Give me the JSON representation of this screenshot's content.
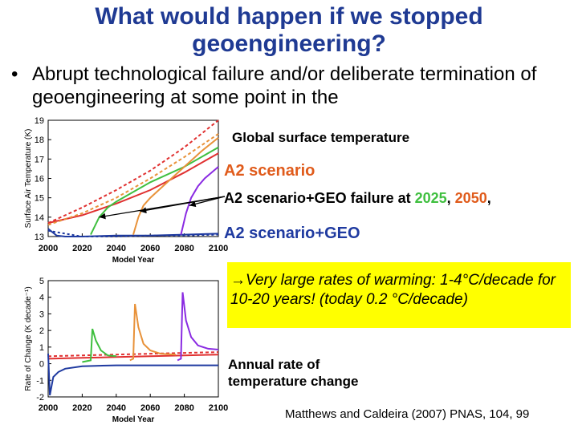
{
  "slide": {
    "title_line1": "What would happen if we stopped",
    "title_line2": "geoengineering?",
    "bullet_dot": "•",
    "bullet_text": "Abrupt technological failure and/or deliberate termination of geoengineering at some point in the",
    "label_global": "Global surface temperature",
    "label_a2": "A2 scenario",
    "label_geo_failure_prefix": "A2 scenario+GEO failure at ",
    "label_year_2025": "2025",
    "label_sep": ", ",
    "label_year_2050": "2050",
    "label_trail": ",",
    "label_a2geo": "A2 scenario+GEO",
    "box_text": "→Very large rates of warming: 1-4°C/decade for 10-20 years! (today 0.2 °C/decade)",
    "annual_line1": "Annual rate of",
    "annual_line2": "temperature change",
    "citation": "Matthews and Caldeira (2007) PNAS, 104, 99",
    "colors": {
      "title": "#1f3a93",
      "orange": "#e05b1b",
      "green": "#3fbf3f",
      "box": "#ffff00"
    }
  },
  "chart_data": [
    {
      "type": "line",
      "ylabel": "Surface Air Temperature (K)",
      "xlabel": "Model Year",
      "xlim": [
        2000,
        2100
      ],
      "ylim": [
        13,
        19
      ],
      "x_ticks": [
        2000,
        2020,
        2040,
        2060,
        2080,
        2100
      ],
      "y_ticks": [
        13,
        14,
        15,
        16,
        17,
        18,
        19
      ],
      "series": [
        {
          "color": "#e03030",
          "dash": "4 3",
          "x": [
            2000,
            2020,
            2040,
            2060,
            2080,
            2100
          ],
          "y": [
            13.7,
            14.5,
            15.4,
            16.4,
            17.6,
            19.0
          ]
        },
        {
          "color": "#e03030",
          "dash": "",
          "x": [
            2000,
            2020,
            2040,
            2060,
            2080,
            2100
          ],
          "y": [
            13.7,
            14.1,
            14.7,
            15.4,
            16.3,
            17.3
          ]
        },
        {
          "color": "#e8923a",
          "dash": "4 3",
          "x": [
            2000,
            2020,
            2040,
            2060,
            2080,
            2100
          ],
          "y": [
            13.6,
            14.2,
            15.0,
            16.0,
            17.1,
            18.3
          ]
        },
        {
          "color": "#1f3aa0",
          "dash": "",
          "x": [
            2000,
            2005,
            2010,
            2020,
            2040,
            2060,
            2080,
            2100
          ],
          "y": [
            13.4,
            13.05,
            13.0,
            13.0,
            13.05,
            13.05,
            13.1,
            13.15
          ]
        },
        {
          "color": "#1f3aa0",
          "dash": "3 3",
          "x": [
            2000,
            2020,
            2040,
            2060,
            2080,
            2100
          ],
          "y": [
            13.3,
            13.0,
            13.0,
            13.05,
            13.05,
            13.1
          ]
        },
        {
          "color": "#3fbf3f",
          "dash": "",
          "x": [
            2025,
            2030,
            2035,
            2040,
            2050,
            2060,
            2080,
            2100
          ],
          "y": [
            13.1,
            14.0,
            14.5,
            14.8,
            15.3,
            15.8,
            16.6,
            17.6
          ]
        },
        {
          "color": "#e8923a",
          "dash": "",
          "x": [
            2050,
            2053,
            2056,
            2060,
            2070,
            2080,
            2090,
            2100
          ],
          "y": [
            13.1,
            14.0,
            14.6,
            15.0,
            15.8,
            16.6,
            17.4,
            18.1
          ]
        },
        {
          "color": "#8a2be2",
          "dash": "",
          "x": [
            2078,
            2081,
            2084,
            2088,
            2092,
            2096,
            2100
          ],
          "y": [
            13.1,
            14.2,
            15.0,
            15.6,
            16.0,
            16.3,
            16.6
          ]
        }
      ]
    },
    {
      "type": "line",
      "ylabel": "Rate of Change (K decade⁻¹)",
      "xlabel": "Model Year",
      "xlim": [
        2000,
        2100
      ],
      "ylim": [
        -2,
        5
      ],
      "x_ticks": [
        2000,
        2020,
        2040,
        2060,
        2080,
        2100
      ],
      "y_ticks": [
        -2,
        -1,
        0,
        1,
        2,
        3,
        4,
        5
      ],
      "series": [
        {
          "color": "#e03030",
          "dash": "4 3",
          "x": [
            2000,
            2020,
            2040,
            2060,
            2080,
            2100
          ],
          "y": [
            0.45,
            0.5,
            0.55,
            0.6,
            0.65,
            0.7
          ]
        },
        {
          "color": "#e03030",
          "dash": "",
          "x": [
            2000,
            2020,
            2040,
            2060,
            2080,
            2100
          ],
          "y": [
            0.3,
            0.35,
            0.4,
            0.45,
            0.5,
            0.55
          ]
        },
        {
          "color": "#1f3aa0",
          "dash": "",
          "x": [
            2000,
            2001,
            2003,
            2006,
            2010,
            2020,
            2040,
            2060,
            2080,
            2100
          ],
          "y": [
            0.6,
            -1.9,
            -0.8,
            -0.5,
            -0.3,
            -0.15,
            -0.1,
            -0.1,
            -0.1,
            -0.1
          ]
        },
        {
          "color": "#3fbf3f",
          "dash": "",
          "x": [
            2020,
            2025,
            2026,
            2028,
            2031,
            2035,
            2040
          ],
          "y": [
            0.1,
            0.2,
            2.1,
            1.4,
            0.8,
            0.5,
            0.45
          ]
        },
        {
          "color": "#e8923a",
          "dash": "",
          "x": [
            2048,
            2050,
            2051,
            2053,
            2056,
            2060,
            2066,
            2075
          ],
          "y": [
            0.2,
            0.3,
            3.6,
            2.2,
            1.2,
            0.8,
            0.6,
            0.55
          ]
        },
        {
          "color": "#8a2be2",
          "dash": "",
          "x": [
            2076,
            2078,
            2079,
            2081,
            2084,
            2088,
            2094,
            2100
          ],
          "y": [
            0.2,
            0.3,
            4.3,
            2.6,
            1.6,
            1.1,
            0.9,
            0.85
          ]
        }
      ]
    }
  ]
}
